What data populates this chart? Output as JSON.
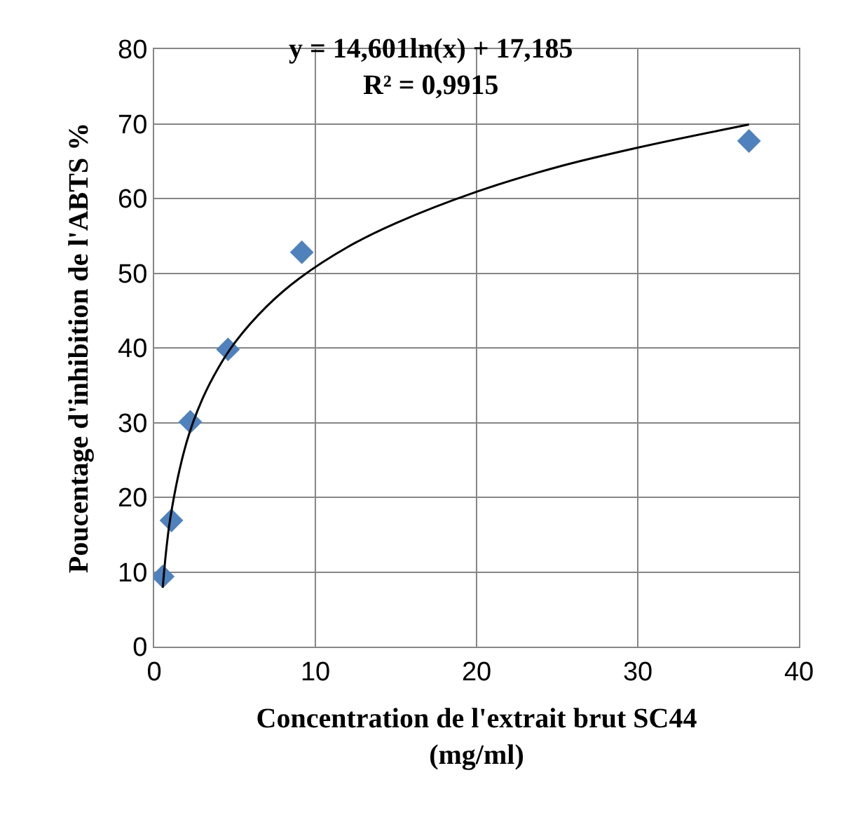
{
  "chart_data": {
    "type": "scatter",
    "xlabel": "Concentration de l'extrait brut SC44\n(mg/ml)",
    "ylabel": "Poucentage d'inhibition de l'ABTS %",
    "xlim": [
      0,
      40
    ],
    "xticks": [
      0,
      10,
      20,
      30,
      40
    ],
    "ylim": [
      0,
      80
    ],
    "yticks": [
      0,
      10,
      20,
      30,
      40,
      50,
      60,
      70,
      80
    ],
    "grid": true,
    "series": [
      {
        "color": "#4f81bd",
        "marker": "diamond",
        "x": [
          0.53,
          1.07,
          2.24,
          4.58,
          9.16,
          36.9
        ],
        "values": [
          9.4,
          16.9,
          30.1,
          39.8,
          52.8,
          67.7
        ]
      },
      {
        "type": "line",
        "color": "#000000",
        "marker": "none",
        "line_style": "solid",
        "x": [
          0.53,
          1,
          2,
          3,
          4,
          5,
          7,
          9,
          12,
          15,
          20,
          25,
          30,
          36.9
        ],
        "values": [
          7.9,
          17.2,
          27.3,
          33.2,
          37.4,
          40.7,
          45.6,
          49.3,
          53.5,
          56.7,
          60.9,
          64.2,
          66.8,
          69.9
        ]
      }
    ],
    "annotations": [
      "y = 14,601ln(x) + 17,185\nR² = 0,9915"
    ]
  }
}
